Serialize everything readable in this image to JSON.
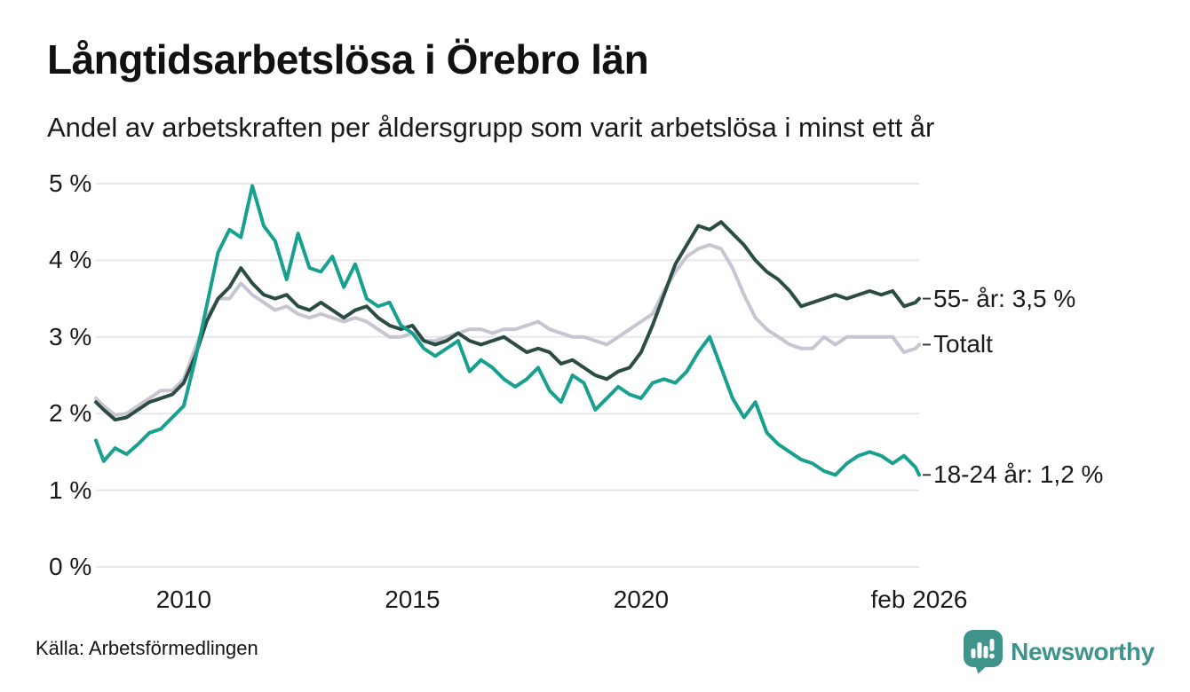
{
  "header": {
    "title": "Långtidsarbetslösa i Örebro län",
    "subtitle": "Andel av arbetskraften per åldersgrupp som varit arbetslösa i minst ett år"
  },
  "footer": {
    "source": "Källa: Arbetsförmedlingen",
    "brand": "Newsworthy",
    "brand_color": "#3e948b"
  },
  "colors": {
    "grid": "#e7e6eb",
    "axis_text": "#1a1a1a",
    "label_tick": "#3c3c3c"
  },
  "chart_data": {
    "type": "line",
    "title": "Långtidsarbetslösa i Örebro län",
    "subtitle": "Andel av arbetskraften per åldersgrupp som varit arbetslösa i minst ett år",
    "grid": "horizontal",
    "legend_position": "right-end-labels",
    "x_axis": {
      "range": [
        2008.08,
        2026.08
      ],
      "ticks": [
        {
          "x": 2010,
          "label": "2010"
        },
        {
          "x": 2015,
          "label": "2015"
        },
        {
          "x": 2020,
          "label": "2020"
        },
        {
          "x": 2026.08,
          "label": "feb 2026"
        }
      ]
    },
    "y_axis": {
      "range": [
        0,
        5
      ],
      "ticks": [
        {
          "y": 0,
          "label": "0 %"
        },
        {
          "y": 1,
          "label": "1 %"
        },
        {
          "y": 2,
          "label": "2 %"
        },
        {
          "y": 3,
          "label": "3 %"
        },
        {
          "y": 4,
          "label": "4 %"
        },
        {
          "y": 5,
          "label": "5 %"
        }
      ]
    },
    "x": [
      2008.08,
      2008.25,
      2008.5,
      2008.75,
      2009,
      2009.25,
      2009.5,
      2009.75,
      2010,
      2010.25,
      2010.5,
      2010.75,
      2011,
      2011.25,
      2011.5,
      2011.75,
      2012,
      2012.25,
      2012.5,
      2012.75,
      2013,
      2013.25,
      2013.5,
      2013.75,
      2014,
      2014.25,
      2014.5,
      2014.75,
      2015,
      2015.25,
      2015.5,
      2015.75,
      2016,
      2016.25,
      2016.5,
      2016.75,
      2017,
      2017.25,
      2017.5,
      2017.75,
      2018,
      2018.25,
      2018.5,
      2018.75,
      2019,
      2019.25,
      2019.5,
      2019.75,
      2020,
      2020.25,
      2020.5,
      2020.75,
      2021,
      2021.25,
      2021.5,
      2021.75,
      2022,
      2022.25,
      2022.5,
      2022.75,
      2023,
      2023.25,
      2023.5,
      2023.75,
      2024,
      2024.25,
      2024.5,
      2024.75,
      2025,
      2025.25,
      2025.5,
      2025.75,
      2026,
      2026.08
    ],
    "series": [
      {
        "name": "Totalt",
        "end_label": "Totalt",
        "end_value": 2.9,
        "color": "#c7c5d2",
        "values": [
          2.2,
          2.1,
          1.98,
          2.0,
          2.1,
          2.2,
          2.3,
          2.3,
          2.45,
          2.85,
          3.25,
          3.5,
          3.5,
          3.7,
          3.55,
          3.45,
          3.35,
          3.4,
          3.3,
          3.25,
          3.3,
          3.25,
          3.2,
          3.25,
          3.2,
          3.1,
          3.0,
          3.0,
          3.05,
          2.95,
          2.95,
          3.0,
          3.05,
          3.1,
          3.1,
          3.05,
          3.1,
          3.1,
          3.15,
          3.2,
          3.1,
          3.05,
          3.0,
          3.0,
          2.95,
          2.9,
          3.0,
          3.1,
          3.2,
          3.3,
          3.6,
          3.85,
          4.05,
          4.15,
          4.2,
          4.15,
          3.9,
          3.55,
          3.25,
          3.1,
          3.0,
          2.9,
          2.85,
          2.85,
          3.0,
          2.9,
          3.0,
          3.0,
          3.0,
          3.0,
          3.0,
          2.8,
          2.85,
          2.9
        ]
      },
      {
        "name": "55- år",
        "end_label": "55- år: 3,5 %",
        "end_value": 3.5,
        "color": "#2b4c43",
        "values": [
          2.15,
          2.05,
          1.92,
          1.95,
          2.05,
          2.15,
          2.2,
          2.25,
          2.4,
          2.75,
          3.2,
          3.5,
          3.65,
          3.9,
          3.7,
          3.55,
          3.5,
          3.55,
          3.4,
          3.35,
          3.45,
          3.35,
          3.25,
          3.35,
          3.4,
          3.25,
          3.15,
          3.1,
          3.15,
          2.95,
          2.9,
          2.95,
          3.05,
          2.95,
          2.9,
          2.95,
          3.0,
          2.9,
          2.8,
          2.85,
          2.8,
          2.65,
          2.7,
          2.6,
          2.5,
          2.45,
          2.55,
          2.6,
          2.8,
          3.15,
          3.55,
          3.95,
          4.2,
          4.45,
          4.4,
          4.5,
          4.35,
          4.2,
          4.0,
          3.85,
          3.75,
          3.6,
          3.4,
          3.45,
          3.5,
          3.55,
          3.5,
          3.55,
          3.6,
          3.55,
          3.6,
          3.4,
          3.45,
          3.5
        ]
      },
      {
        "name": "18-24 år",
        "end_label": "18-24 år: 1,2 %",
        "end_value": 1.2,
        "color": "#17a08e",
        "values": [
          1.65,
          1.38,
          1.55,
          1.47,
          1.6,
          1.75,
          1.8,
          1.95,
          2.1,
          2.7,
          3.4,
          4.1,
          4.4,
          4.3,
          4.97,
          4.45,
          4.25,
          3.75,
          4.35,
          3.9,
          3.85,
          4.05,
          3.65,
          3.95,
          3.5,
          3.4,
          3.45,
          3.15,
          3.05,
          2.85,
          2.75,
          2.85,
          2.95,
          2.55,
          2.7,
          2.6,
          2.45,
          2.35,
          2.45,
          2.6,
          2.3,
          2.15,
          2.5,
          2.4,
          2.05,
          2.2,
          2.35,
          2.25,
          2.2,
          2.4,
          2.45,
          2.4,
          2.55,
          2.8,
          3.0,
          2.6,
          2.2,
          1.95,
          2.15,
          1.75,
          1.6,
          1.5,
          1.4,
          1.35,
          1.25,
          1.2,
          1.35,
          1.45,
          1.5,
          1.45,
          1.35,
          1.45,
          1.3,
          1.2
        ]
      }
    ]
  }
}
